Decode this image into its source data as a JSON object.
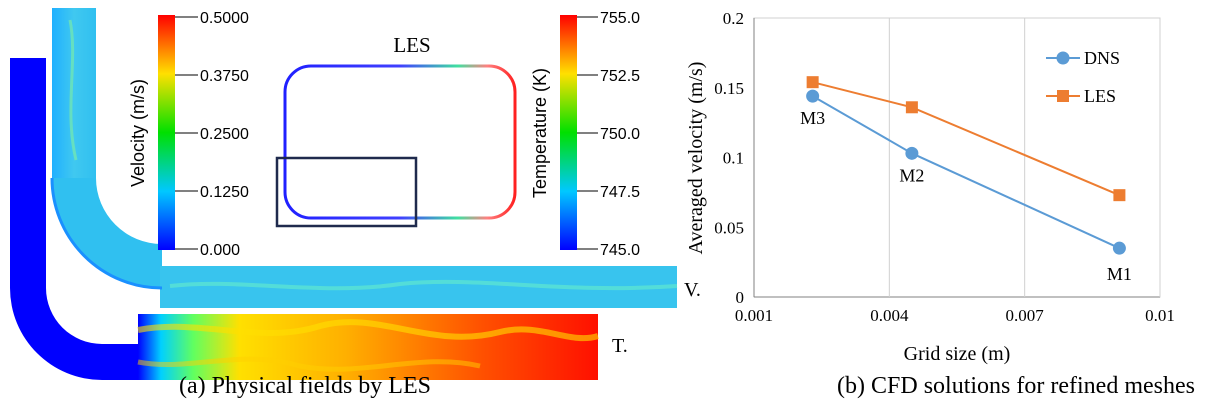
{
  "panel_a": {
    "caption": "(a) Physical fields by LES",
    "inset_title": "LES",
    "velocity_colorbar": {
      "label": "Velocity (m/s)",
      "ticks": [
        "0.5000",
        "0.3750",
        "0.2500",
        "0.1250",
        "0.000"
      ]
    },
    "temperature_colorbar": {
      "label": "Temperature (K)",
      "ticks": [
        "755.0",
        "752.5",
        "750.0",
        "747.5",
        "745.0"
      ]
    },
    "field_labels": {
      "velocity": "V.",
      "temperature": "T."
    },
    "colors": {
      "low": "#0000ff",
      "high": "#ff0000"
    }
  },
  "panel_b": {
    "caption": "(b) CFD solutions for refined meshes"
  },
  "chart_data": {
    "type": "line",
    "title": "",
    "xlabel": "Grid size (m)",
    "ylabel": "Averaged velocity (m/s)",
    "xlim": [
      0.001,
      0.01
    ],
    "ylim": [
      0,
      0.2
    ],
    "xticks": [
      0.001,
      0.004,
      0.007,
      0.01
    ],
    "xtick_labels": [
      "0.001",
      "0.004",
      "0.007",
      "0.01"
    ],
    "yticks": [
      0,
      0.05,
      0.1,
      0.15,
      0.2
    ],
    "ytick_labels": [
      "0",
      "0.05",
      "0.1",
      "0.15",
      "0.2"
    ],
    "grid": "vertical",
    "legend_position": "top-right",
    "series": [
      {
        "name": "DNS",
        "color": "#5b9bd5",
        "marker": "circle",
        "x": [
          0.0023,
          0.0045,
          0.0091
        ],
        "y": [
          0.144,
          0.103,
          0.035
        ]
      },
      {
        "name": "LES",
        "color": "#ed7d31",
        "marker": "square",
        "x": [
          0.0023,
          0.0045,
          0.0091
        ],
        "y": [
          0.154,
          0.136,
          0.073
        ]
      }
    ],
    "annotations": [
      {
        "text": "M3",
        "x": 0.0023,
        "y": 0.144
      },
      {
        "text": "M2",
        "x": 0.0045,
        "y": 0.103
      },
      {
        "text": "M1",
        "x": 0.0091,
        "y": 0.035
      }
    ]
  }
}
